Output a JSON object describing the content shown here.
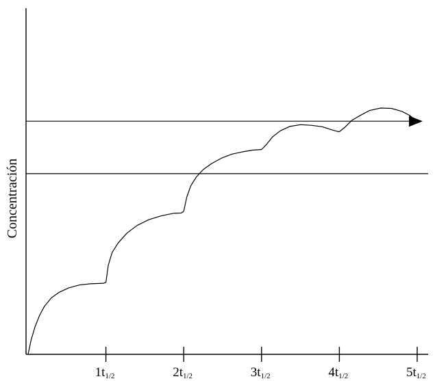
{
  "chart_data": {
    "type": "line",
    "title": "",
    "xlabel": "",
    "ylabel": "Concentración",
    "xlim": [
      0,
      5
    ],
    "ylim": [
      0,
      100
    ],
    "grid": false,
    "legend": "none",
    "x_ticks": [
      {
        "value": 1,
        "main": "1t",
        "sub": "1/2"
      },
      {
        "value": 2,
        "main": "2t",
        "sub": "1/2"
      },
      {
        "value": 3,
        "main": "3t",
        "sub": "1/2"
      },
      {
        "value": 4,
        "main": "4t",
        "sub": "1/2"
      },
      {
        "value": 5,
        "main": "5t",
        "sub": "1/2"
      }
    ],
    "reference_lines": [
      {
        "y": 80,
        "arrow": true
      },
      {
        "y": 62,
        "arrow": false
      }
    ],
    "series": [
      {
        "x": [
          0,
          0.04,
          0.09,
          0.15,
          0.21,
          0.3,
          0.4,
          0.52,
          0.66,
          0.8,
          0.97,
          1.0,
          1.03,
          1.08,
          1.16,
          1.27,
          1.4,
          1.55,
          1.71,
          1.87,
          1.97,
          2.0,
          2.04,
          2.09,
          2.16,
          2.25,
          2.36,
          2.49,
          2.62,
          2.76,
          2.89,
          2.97,
          3.0,
          3.06,
          3.14,
          3.24,
          3.36,
          3.5,
          3.64,
          3.78,
          3.92,
          3.99,
          4.0,
          4.07,
          4.16,
          4.27,
          4.39,
          4.53,
          4.67,
          4.8,
          4.91,
          4.98
        ],
        "y": [
          0,
          5,
          9.5,
          13.5,
          16.5,
          19.4,
          21.3,
          22.8,
          23.8,
          24.2,
          24.4,
          24.7,
          30.5,
          35,
          38.3,
          41.6,
          44.2,
          46.2,
          47.5,
          48.4,
          48.5,
          49.1,
          54,
          57.8,
          60.8,
          63.4,
          65.5,
          67.4,
          68.7,
          69.5,
          70.1,
          70.2,
          70.3,
          71.9,
          74.6,
          76.7,
          78.2,
          78.8,
          78.6,
          78.1,
          76.9,
          76.4,
          76.4,
          77.9,
          80.3,
          82,
          83.7,
          84.5,
          84.4,
          83.4,
          81.9,
          80
        ]
      }
    ]
  }
}
